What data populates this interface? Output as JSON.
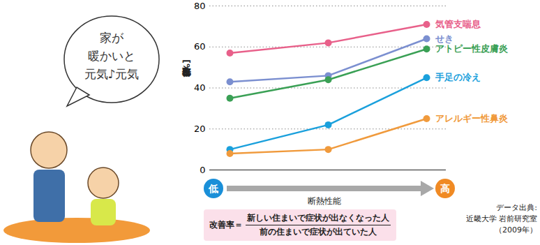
{
  "chart_data": {
    "type": "line",
    "ylabel": "改善率[%]",
    "xlabel": "断熱性能",
    "x_range_labels": [
      "低",
      "高"
    ],
    "categories": [
      null,
      null,
      null
    ],
    "series": [
      {
        "name": "気管支喘息",
        "color": "#e8608a",
        "values": [
          57,
          62,
          71
        ]
      },
      {
        "name": "せき",
        "color": "#7b8fd0",
        "values": [
          43,
          46,
          64
        ]
      },
      {
        "name": "アトピー性皮膚炎",
        "color": "#3aa055",
        "values": [
          35,
          44,
          59
        ]
      },
      {
        "name": "手足の冷え",
        "color": "#1aa0dc",
        "values": [
          10,
          22,
          45
        ]
      },
      {
        "name": "アレルギー性鼻炎",
        "color": "#f09a3c",
        "values": [
          8,
          10,
          25
        ]
      }
    ],
    "ylim": [
      0,
      80
    ],
    "yticks": [
      0,
      20,
      40,
      60,
      80
    ],
    "grid": true,
    "marker": "circle",
    "formula": {
      "lhs": "改善率＝",
      "numerator": "新しい住まいで症状が出なくなった人",
      "denominator": "前の住まいで症状が出ていた人"
    },
    "source": [
      "データ出典:",
      "近畿大学 岩前研究室",
      "（2009年）"
    ],
    "speech_bubble": [
      "家が",
      "暖かいと",
      "元気♪元気"
    ]
  }
}
